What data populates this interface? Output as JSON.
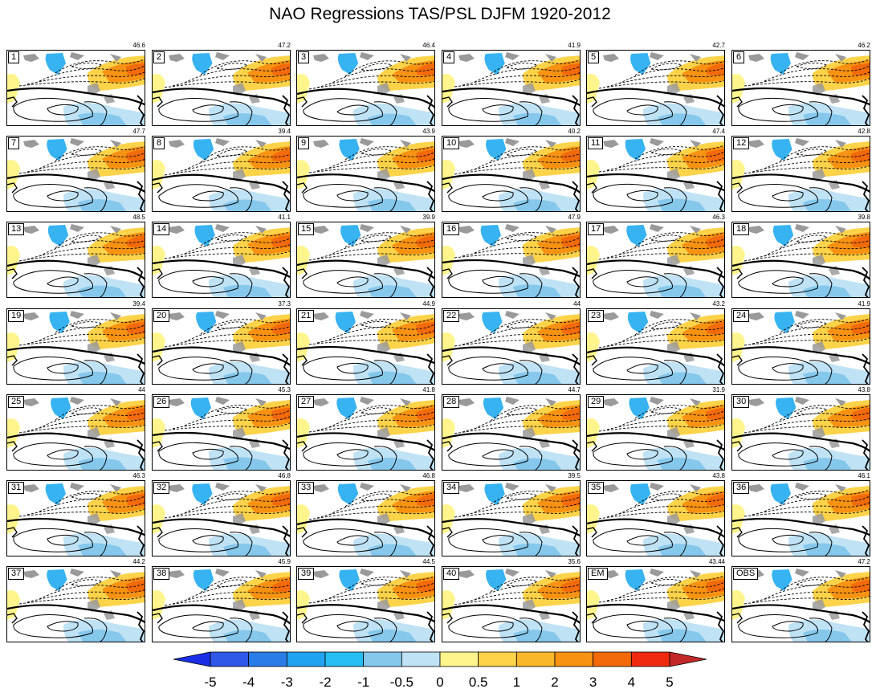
{
  "title": "NAO Regressions TAS/PSL DJFM 1920-2012",
  "panels": [
    {
      "label": "1",
      "value": "46.6"
    },
    {
      "label": "2",
      "value": "47.2"
    },
    {
      "label": "3",
      "value": "46.4"
    },
    {
      "label": "4",
      "value": "41.9"
    },
    {
      "label": "5",
      "value": "42.7"
    },
    {
      "label": "6",
      "value": "46.2"
    },
    {
      "label": "7",
      "value": "47.7"
    },
    {
      "label": "8",
      "value": "39.4"
    },
    {
      "label": "9",
      "value": "43.9"
    },
    {
      "label": "10",
      "value": "40.2"
    },
    {
      "label": "11",
      "value": "47.4"
    },
    {
      "label": "12",
      "value": "42.8"
    },
    {
      "label": "13",
      "value": "48.5"
    },
    {
      "label": "14",
      "value": "41.1"
    },
    {
      "label": "15",
      "value": "39.9"
    },
    {
      "label": "16",
      "value": "47.9"
    },
    {
      "label": "17",
      "value": "46.3"
    },
    {
      "label": "18",
      "value": "39.8"
    },
    {
      "label": "19",
      "value": "39.4"
    },
    {
      "label": "20",
      "value": "37.3"
    },
    {
      "label": "21",
      "value": "44.9"
    },
    {
      "label": "22",
      "value": "44"
    },
    {
      "label": "23",
      "value": "43.2"
    },
    {
      "label": "24",
      "value": "41.9"
    },
    {
      "label": "25",
      "value": "44"
    },
    {
      "label": "26",
      "value": "45.3"
    },
    {
      "label": "27",
      "value": "41.8"
    },
    {
      "label": "28",
      "value": "44.7"
    },
    {
      "label": "29",
      "value": "31.9"
    },
    {
      "label": "30",
      "value": "43.8"
    },
    {
      "label": "31",
      "value": "46.3"
    },
    {
      "label": "32",
      "value": "46.8"
    },
    {
      "label": "33",
      "value": "46.8"
    },
    {
      "label": "34",
      "value": "39.5"
    },
    {
      "label": "35",
      "value": "43.8"
    },
    {
      "label": "36",
      "value": "46.1"
    },
    {
      "label": "37",
      "value": "44.2"
    },
    {
      "label": "38",
      "value": "45.9"
    },
    {
      "label": "39",
      "value": "44.5"
    },
    {
      "label": "40",
      "value": "35.6"
    },
    {
      "label": "EM",
      "value": "43.44"
    },
    {
      "label": "OBS",
      "value": "47.2"
    }
  ],
  "colorbar": {
    "tick_labels": [
      "-5",
      "-4",
      "-3",
      "-2",
      "-1",
      "-0.5",
      "0",
      "0.5",
      "1",
      "2",
      "3",
      "4",
      "5"
    ],
    "colors": [
      "#1a2ee6",
      "#2f57e8",
      "#2a7de9",
      "#20a3f0",
      "#26bdf2",
      "#86c8ec",
      "#bfe2f5",
      "#fff58c",
      "#fdd34a",
      "#f9b72c",
      "#f79213",
      "#f36a0a",
      "#ef2a10",
      "#d50d0d",
      "#c22828"
    ]
  },
  "map_colors": {
    "cold_strong": "#37b3f1",
    "cold_mid": "#86c8ec",
    "cold_light": "#bfe2f5",
    "warm_light": "#fff58c",
    "warm_mid": "#fdd34a",
    "warm_strong": "#f79213",
    "warm_max": "#f36a0a",
    "land_grey": "#9a9a9a"
  }
}
